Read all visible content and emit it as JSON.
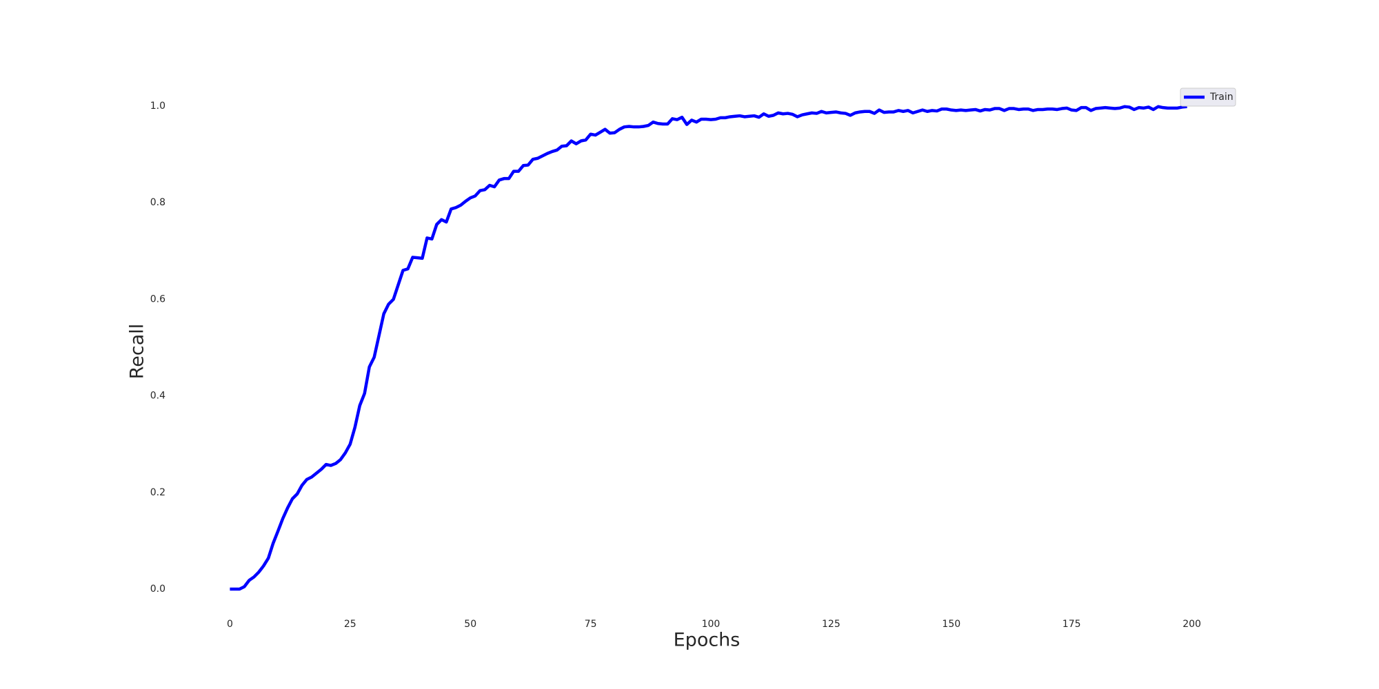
{
  "chart_data": {
    "type": "line",
    "xlabel": "Epochs",
    "ylabel": "Recall",
    "x": [
      0,
      1,
      2,
      3,
      4,
      5,
      6,
      7,
      8,
      9,
      10,
      11,
      12,
      13,
      14,
      15,
      16,
      17,
      18,
      19,
      20,
      21,
      22,
      23,
      24,
      25,
      26,
      27,
      28,
      29,
      30,
      31,
      32,
      33,
      34,
      35,
      36,
      37,
      38,
      39,
      40,
      41,
      42,
      43,
      44,
      45,
      46,
      47,
      48,
      49,
      50,
      51,
      52,
      53,
      54,
      55,
      56,
      57,
      58,
      59,
      60,
      61,
      62,
      63,
      64,
      65,
      66,
      67,
      68,
      69,
      70,
      71,
      72,
      73,
      74,
      75,
      76,
      77,
      78,
      79,
      80,
      81,
      82,
      83,
      84,
      85,
      86,
      87,
      88,
      89,
      90,
      91,
      92,
      93,
      94,
      95,
      96,
      97,
      98,
      99,
      100,
      101,
      102,
      103,
      104,
      105,
      106,
      107,
      108,
      109,
      110,
      111,
      112,
      113,
      114,
      115,
      116,
      117,
      118,
      119,
      120,
      121,
      122,
      123,
      124,
      125,
      126,
      127,
      128,
      129,
      130,
      131,
      132,
      133,
      134,
      135,
      136,
      137,
      138,
      139,
      140,
      141,
      142,
      143,
      144,
      145,
      146,
      147,
      148,
      149,
      150,
      151,
      152,
      153,
      154,
      155,
      156,
      157,
      158,
      159,
      160,
      161,
      162,
      163,
      164,
      165,
      166,
      167,
      168,
      169,
      170,
      171,
      172,
      173,
      174,
      175,
      176,
      177,
      178,
      179,
      180,
      181,
      182,
      183,
      184,
      185,
      186,
      187,
      188,
      189,
      190,
      191,
      192,
      193,
      194,
      195,
      196,
      197,
      198,
      199
    ],
    "series": [
      {
        "name": "Train",
        "color": "#0000ff",
        "values": [
          0,
          0,
          0,
          0.005,
          0.018,
          0.025,
          0.035,
          0.048,
          0.064,
          0.095,
          0.12,
          0.146,
          0.168,
          0.187,
          0.197,
          0.215,
          0.227,
          0.232,
          0.24,
          0.248,
          0.258,
          0.256,
          0.26,
          0.268,
          0.282,
          0.3,
          0.335,
          0.38,
          0.405,
          0.46,
          0.48,
          0.525,
          0.57,
          0.59,
          0.6,
          0.63,
          0.66,
          0.663,
          0.687,
          0.686,
          0.685,
          0.727,
          0.725,
          0.755,
          0.765,
          0.76,
          0.787,
          0.79,
          0.795,
          0.803,
          0.81,
          0.814,
          0.825,
          0.827,
          0.836,
          0.833,
          0.847,
          0.85,
          0.85,
          0.865,
          0.865,
          0.877,
          0.878,
          0.89,
          0.892,
          0.897,
          0.902,
          0.906,
          0.909,
          0.917,
          0.918,
          0.928,
          0.922,
          0.928,
          0.93,
          0.942,
          0.94,
          0.946,
          0.952,
          0.944,
          0.945,
          0.952,
          0.957,
          0.958,
          0.957,
          0.957,
          0.958,
          0.96,
          0.967,
          0.964,
          0.963,
          0.963,
          0.974,
          0.972,
          0.977,
          0.962,
          0.971,
          0.967,
          0.973,
          0.973,
          0.972,
          0.973,
          0.976,
          0.976,
          0.978,
          0.979,
          0.98,
          0.978,
          0.979,
          0.98,
          0.977,
          0.984,
          0.979,
          0.981,
          0.986,
          0.984,
          0.985,
          0.983,
          0.978,
          0.982,
          0.984,
          0.986,
          0.985,
          0.989,
          0.986,
          0.987,
          0.988,
          0.986,
          0.985,
          0.981,
          0.986,
          0.988,
          0.989,
          0.989,
          0.985,
          0.992,
          0.987,
          0.988,
          0.988,
          0.991,
          0.989,
          0.991,
          0.986,
          0.989,
          0.992,
          0.989,
          0.991,
          0.99,
          0.994,
          0.994,
          0.992,
          0.991,
          0.992,
          0.991,
          0.992,
          0.993,
          0.99,
          0.993,
          0.992,
          0.995,
          0.995,
          0.991,
          0.995,
          0.995,
          0.993,
          0.994,
          0.994,
          0.991,
          0.993,
          0.993,
          0.994,
          0.994,
          0.993,
          0.995,
          0.996,
          0.992,
          0.991,
          0.997,
          0.997,
          0.991,
          0.995,
          0.996,
          0.997,
          0.996,
          0.995,
          0.996,
          0.999,
          0.998,
          0.993,
          0.997,
          0.996,
          0.998,
          0.993,
          0.999,
          0.997,
          0.996,
          0.996,
          0.996,
          0.998,
          0.999
        ]
      }
    ],
    "xlim": [
      -9.95,
      208.95
    ],
    "ylim": [
      -0.05,
      1.05
    ],
    "xticks": [
      0,
      25,
      50,
      75,
      100,
      125,
      150,
      175,
      200
    ],
    "yticks": [
      {
        "value": 0,
        "label": "0.0"
      },
      {
        "value": 0.2,
        "label": "0.2"
      },
      {
        "value": 0.4,
        "label": "0.4"
      },
      {
        "value": 0.6,
        "label": "0.6"
      },
      {
        "value": 0.8,
        "label": "0.8"
      },
      {
        "value": 1,
        "label": "1.0"
      }
    ],
    "grid": false,
    "legend": "upper right"
  }
}
